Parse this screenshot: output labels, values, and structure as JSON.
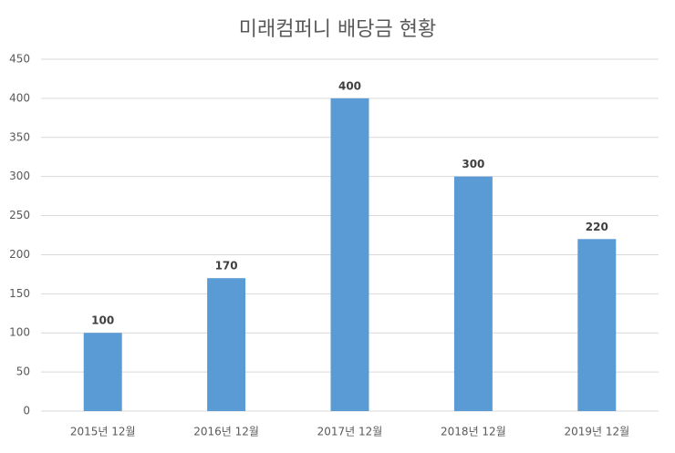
{
  "chart_data": {
    "type": "bar",
    "title": "미래컴퍼니 배당금 현황",
    "categories": [
      "2015년 12월",
      "2016년 12월",
      "2017년 12월",
      "2018년 12월",
      "2019년 12월"
    ],
    "values": [
      100,
      170,
      400,
      300,
      220
    ],
    "color": "#5b9bd5",
    "ylim": [
      0,
      450
    ],
    "yticks": [
      0,
      50,
      100,
      150,
      200,
      250,
      300,
      350,
      400,
      450
    ],
    "grid": true
  }
}
